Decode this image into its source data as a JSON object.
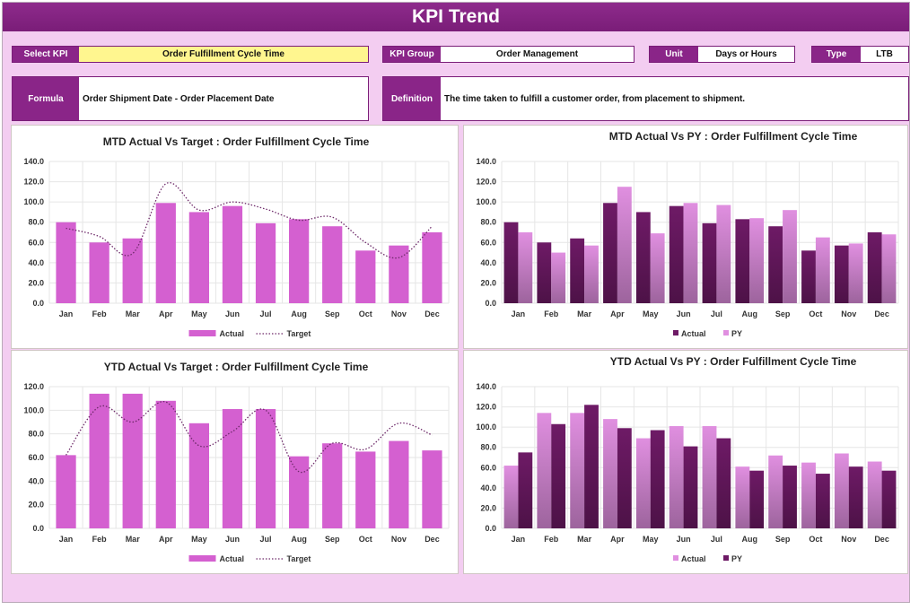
{
  "header": {
    "title": "KPI Trend"
  },
  "selectors": {
    "select_kpi": {
      "label": "Select KPI",
      "value": "Order Fulfillment Cycle Time"
    },
    "kpi_group": {
      "label": "KPI Group",
      "value": "Order Management"
    },
    "unit": {
      "label": "Unit",
      "value": "Days or Hours"
    },
    "type": {
      "label": "Type",
      "value": "LTB"
    }
  },
  "info": {
    "formula": {
      "label": "Formula",
      "value": "Order Shipment Date - Order Placement Date"
    },
    "definition": {
      "label": "Definition",
      "value": "The time taken to fulfill a customer order, from placement to shipment."
    }
  },
  "colors": {
    "accent": "#8a2588",
    "select_highlight": "#fff68f",
    "page_bg": "#f3cdf1",
    "actual_bar": "#d460d0",
    "py_dark": "#6e1a66",
    "py_light": "#e08fe0"
  },
  "chart_data": [
    {
      "type": "bar+line",
      "title": "MTD Actual Vs Target : Order Fulfillment Cycle Time",
      "categories": [
        "Jan",
        "Feb",
        "Mar",
        "Apr",
        "May",
        "Jun",
        "Jul",
        "Aug",
        "Sep",
        "Oct",
        "Nov",
        "Dec"
      ],
      "ylim": [
        0,
        140
      ],
      "yticks": [
        "0.0",
        "20.0",
        "40.0",
        "60.0",
        "80.0",
        "100.0",
        "120.0",
        "140.0"
      ],
      "grid": true,
      "legend": "bottom",
      "series": [
        {
          "name": "Actual",
          "kind": "bar",
          "color": "#d460d0",
          "values": [
            80,
            60,
            64,
            99,
            90,
            96,
            79,
            83,
            76,
            52,
            57,
            70
          ]
        },
        {
          "name": "Target",
          "kind": "dotted-line",
          "color": "#6e2a6a",
          "values": [
            74,
            66,
            49,
            118,
            92,
            100,
            93,
            82,
            85,
            60,
            45,
            76
          ]
        }
      ]
    },
    {
      "type": "bar",
      "title": "MTD Actual Vs PY : Order Fulfillment Cycle Time",
      "categories": [
        "Jan",
        "Feb",
        "Mar",
        "Apr",
        "May",
        "Jun",
        "Jul",
        "Aug",
        "Sep",
        "Oct",
        "Nov",
        "Dec"
      ],
      "ylim": [
        0,
        140
      ],
      "yticks": [
        "0.0",
        "20.0",
        "40.0",
        "60.0",
        "80.0",
        "100.0",
        "120.0",
        "140.0"
      ],
      "grid": true,
      "legend": "bottom",
      "series": [
        {
          "name": "Actual",
          "kind": "bar",
          "color": "#6e1a66",
          "values": [
            80,
            60,
            64,
            99,
            90,
            96,
            79,
            83,
            76,
            52,
            57,
            70
          ]
        },
        {
          "name": "PY",
          "kind": "bar",
          "color": "#e08fe0",
          "values": [
            70,
            50,
            57,
            115,
            69,
            99,
            97,
            84,
            92,
            65,
            59,
            68
          ]
        }
      ]
    },
    {
      "type": "bar+line",
      "title": "YTD Actual Vs Target : Order Fulfillment Cycle Time",
      "categories": [
        "Jan",
        "Feb",
        "Mar",
        "Apr",
        "May",
        "Jun",
        "Jul",
        "Aug",
        "Sep",
        "Oct",
        "Nov",
        "Dec"
      ],
      "ylim": [
        0,
        120
      ],
      "yticks": [
        "0.0",
        "20.0",
        "40.0",
        "60.0",
        "80.0",
        "100.0",
        "120.0"
      ],
      "grid": true,
      "legend": "bottom",
      "series": [
        {
          "name": "Actual",
          "kind": "bar",
          "color": "#d460d0",
          "values": [
            62,
            114,
            114,
            108,
            89,
            101,
            101,
            61,
            72,
            65,
            74,
            66
          ]
        },
        {
          "name": "Target",
          "kind": "dotted-line",
          "color": "#6e2a6a",
          "values": [
            62,
            103,
            90,
            107,
            70,
            82,
            100,
            48,
            72,
            67,
            89,
            79
          ]
        }
      ]
    },
    {
      "type": "bar",
      "title": "YTD Actual Vs PY : Order Fulfillment Cycle Time",
      "categories": [
        "Jan",
        "Feb",
        "Mar",
        "Apr",
        "May",
        "Jun",
        "Jul",
        "Aug",
        "Sep",
        "Oct",
        "Nov",
        "Dec"
      ],
      "ylim": [
        0,
        140
      ],
      "yticks": [
        "0.0",
        "20.0",
        "40.0",
        "60.0",
        "80.0",
        "100.0",
        "120.0",
        "140.0"
      ],
      "grid": true,
      "legend": "bottom",
      "series": [
        {
          "name": "Actual",
          "kind": "bar",
          "color": "#e08fe0",
          "values": [
            62,
            114,
            114,
            108,
            89,
            101,
            101,
            61,
            72,
            65,
            74,
            66
          ]
        },
        {
          "name": "PY",
          "kind": "bar",
          "color": "#6e1a66",
          "values": [
            75,
            103,
            122,
            99,
            97,
            81,
            89,
            57,
            62,
            54,
            61,
            57
          ]
        }
      ]
    }
  ]
}
